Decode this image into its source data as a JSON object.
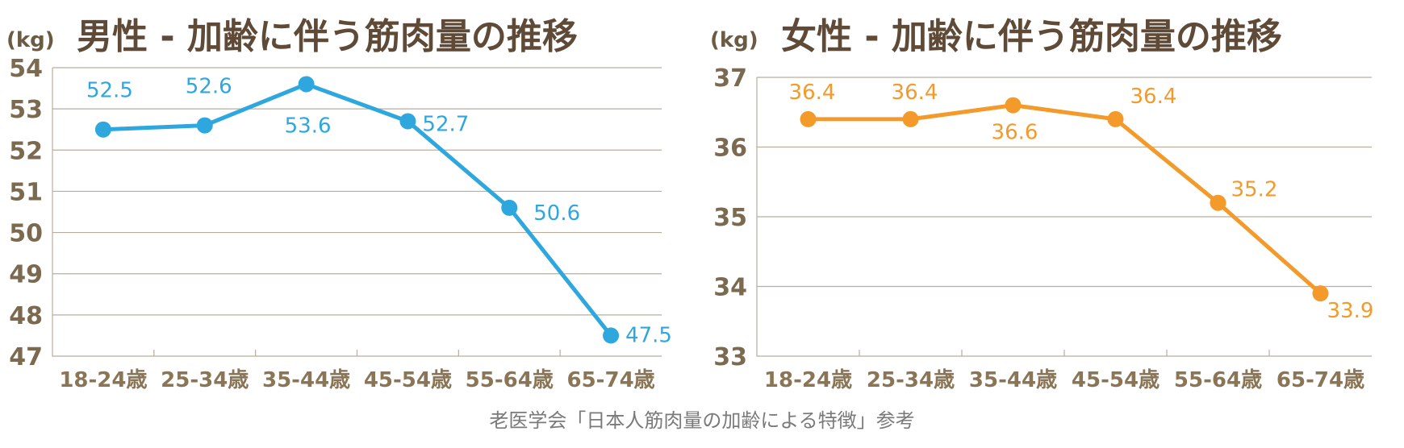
{
  "source_note": "老医学会「日本人筋肉量の加齢による特徴」参考",
  "chart_data": [
    {
      "type": "line",
      "title": "男性 - 加齢に伴う筋肉量の推移",
      "ylabel": "(kg)",
      "categories": [
        "18-24歳",
        "25-34歳",
        "35-44歳",
        "45-54歳",
        "55-64歳",
        "65-74歳"
      ],
      "series": [
        {
          "values": [
            52.5,
            52.6,
            53.6,
            52.7,
            50.6,
            47.5
          ]
        }
      ],
      "data_labels": [
        "52.5",
        "52.6",
        "53.6",
        "52.7",
        "50.6",
        "47.5"
      ],
      "ylim": [
        47,
        54
      ],
      "yticks": [
        "47",
        "48",
        "49",
        "50",
        "51",
        "52",
        "53",
        "54"
      ],
      "grid": true,
      "color": "#2ea7df"
    },
    {
      "type": "line",
      "title": "女性 - 加齢に伴う筋肉量の推移",
      "ylabel": "(kg)",
      "categories": [
        "18-24歳",
        "25-34歳",
        "35-44歳",
        "45-54歳",
        "55-64歳",
        "65-74歳"
      ],
      "series": [
        {
          "values": [
            36.4,
            36.4,
            36.6,
            36.4,
            35.2,
            33.9
          ]
        }
      ],
      "data_labels": [
        "36.4",
        "36.4",
        "36.6",
        "36.4",
        "35.2",
        "33.9"
      ],
      "ylim": [
        33,
        37
      ],
      "yticks": [
        "33",
        "34",
        "35",
        "36",
        "37"
      ],
      "grid": true,
      "color": "#f39a2b"
    }
  ]
}
